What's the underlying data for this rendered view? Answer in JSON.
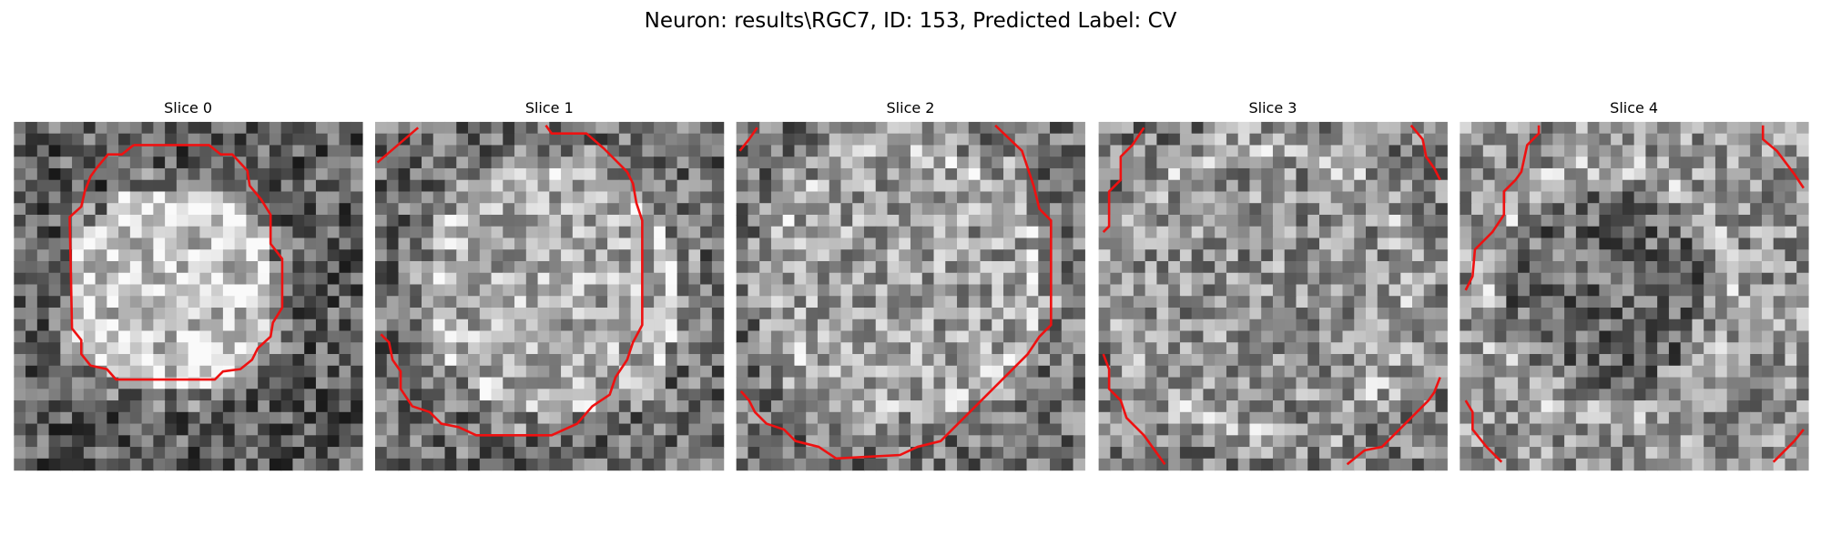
{
  "header": {
    "title": "Neuron: results\\RGC7, ID: 153, Predicted Label: CV"
  },
  "panels": [
    {
      "title": "Slice 0"
    },
    {
      "title": "Slice 1"
    },
    {
      "title": "Slice 2"
    },
    {
      "title": "Slice 3"
    },
    {
      "title": "Slice 4"
    }
  ]
}
